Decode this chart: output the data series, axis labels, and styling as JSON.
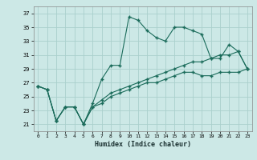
{
  "xlabel": "Humidex (Indice chaleur)",
  "bg_color": "#cce8e6",
  "grid_color": "#aacfcc",
  "line_color": "#1a6b5a",
  "xlim": [
    -0.5,
    23.5
  ],
  "ylim": [
    20,
    38
  ],
  "yticks": [
    21,
    23,
    25,
    27,
    29,
    31,
    33,
    35,
    37
  ],
  "xticks": [
    0,
    1,
    2,
    3,
    4,
    5,
    6,
    7,
    8,
    9,
    10,
    11,
    12,
    13,
    14,
    15,
    16,
    17,
    18,
    19,
    20,
    21,
    22,
    23
  ],
  "series": [
    [
      26.5,
      26.0,
      21.5,
      23.5,
      23.5,
      21.0,
      24.0,
      27.5,
      29.5,
      29.5,
      36.5,
      36.0,
      34.5,
      33.5,
      33.0,
      35.0,
      35.0,
      34.5,
      34.0,
      30.5,
      30.5,
      32.5,
      31.5,
      29.0
    ],
    [
      26.5,
      26.0,
      21.5,
      23.5,
      23.5,
      21.0,
      23.5,
      24.5,
      25.5,
      26.0,
      26.5,
      27.0,
      27.5,
      28.0,
      28.5,
      29.0,
      29.5,
      30.0,
      30.0,
      30.5,
      31.0,
      31.0,
      31.5,
      29.0
    ],
    [
      26.5,
      26.0,
      21.5,
      23.5,
      23.5,
      21.0,
      23.5,
      24.0,
      25.0,
      25.5,
      26.0,
      26.5,
      27.0,
      27.0,
      27.5,
      28.0,
      28.5,
      28.5,
      28.0,
      28.0,
      28.5,
      28.5,
      28.5,
      29.0
    ]
  ]
}
